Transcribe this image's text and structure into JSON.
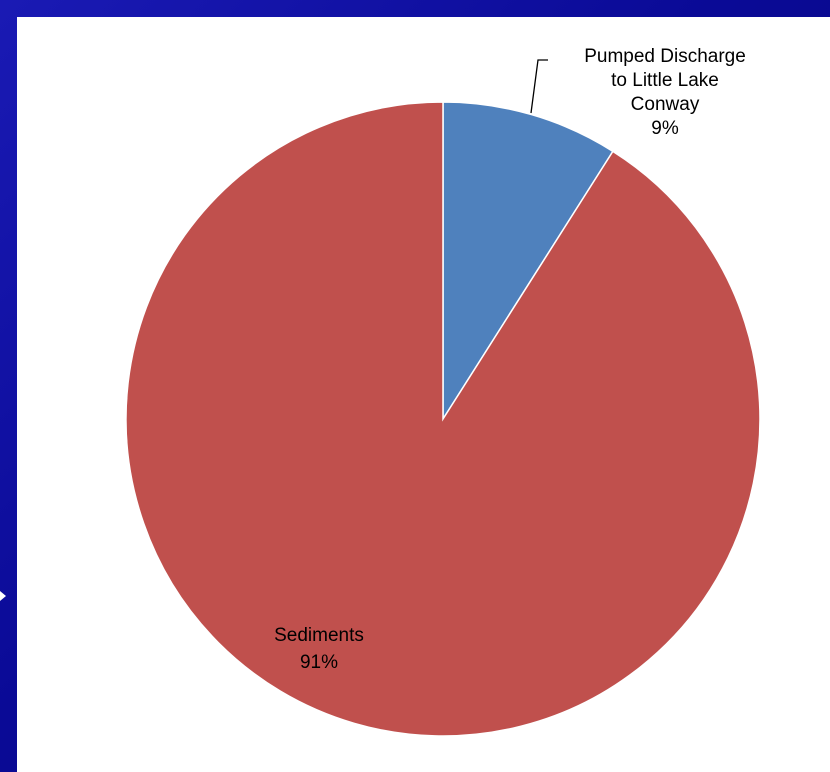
{
  "chart_data": {
    "type": "pie",
    "title": "",
    "start_angle_deg": 0,
    "direction": "clockwise",
    "slices": [
      {
        "label_lines": [
          "Pumped Discharge",
          "to Little Lake",
          "Conway"
        ],
        "value": 9,
        "percent_label": "9%",
        "color": "#4F81BD"
      },
      {
        "label_lines": [
          "Sediments"
        ],
        "value": 91,
        "percent_label": "91%",
        "color": "#C0504D"
      }
    ],
    "legend": "none"
  },
  "colors": {
    "slide_background": "#0a0a9a",
    "panel_background": "#ffffff",
    "slice_border": "#ffffff"
  },
  "icons": {
    "bullet": "bullet-arrow-icon"
  }
}
